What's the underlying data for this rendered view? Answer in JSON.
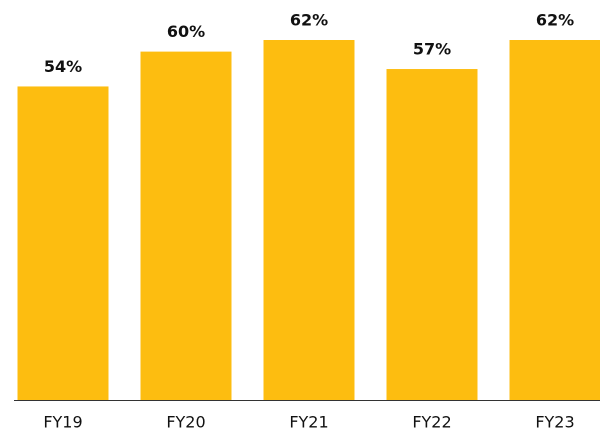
{
  "chart_data": {
    "type": "bar",
    "categories": [
      "FY19",
      "FY20",
      "FY21",
      "FY22",
      "FY23"
    ],
    "values": [
      54,
      60,
      62,
      57,
      62
    ],
    "value_labels": [
      "54%",
      "60%",
      "62%",
      "57%",
      "62%"
    ],
    "color": "#fdbd10"
  }
}
